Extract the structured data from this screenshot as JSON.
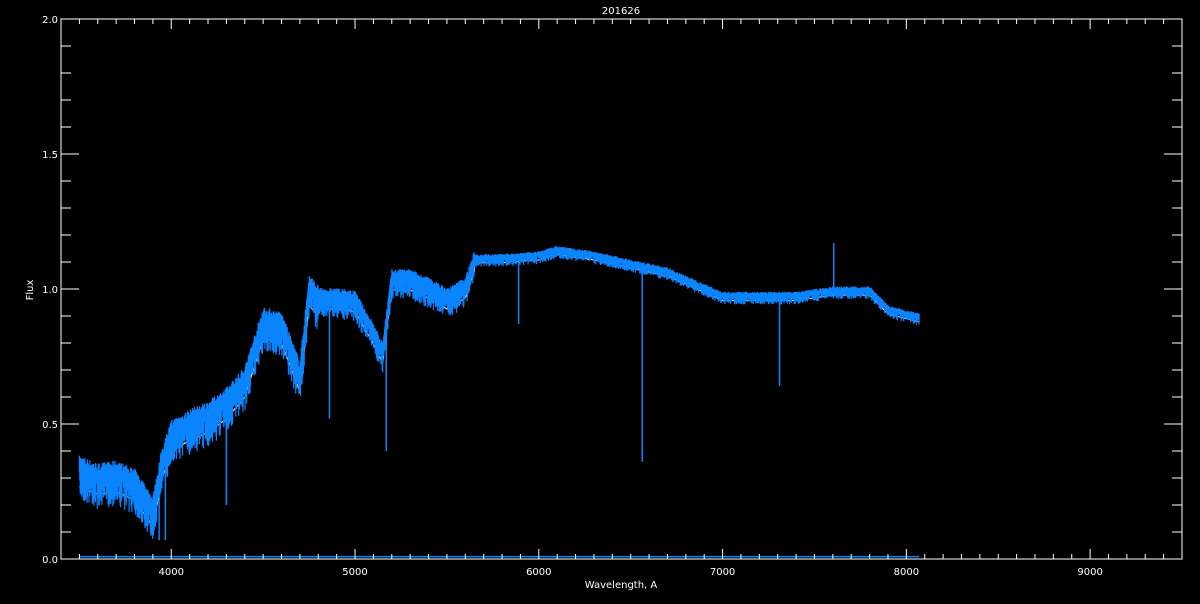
{
  "chart_data": {
    "type": "line",
    "title": "201626",
    "xlabel": "Wavelength, A",
    "ylabel": "Flux",
    "xlim": [
      3400,
      9500
    ],
    "ylim": [
      0.0,
      2.0
    ],
    "xticks": [
      4000,
      5000,
      6000,
      7000,
      8000,
      9000
    ],
    "xtick_labels": [
      "4000",
      "5000",
      "6000",
      "7000",
      "8000",
      "9000"
    ],
    "yticks": [
      0.0,
      0.5,
      1.0,
      1.5,
      2.0
    ],
    "ytick_labels": [
      "0.0",
      "0.5",
      "1.0",
      "1.5",
      "2.0"
    ],
    "grid": false,
    "background": "#000000",
    "colors": {
      "spectrum": "#0a84ff",
      "model": "#ffffff",
      "axes": "#ffffff"
    },
    "series": [
      {
        "role": "spectrum",
        "x": [
          3500,
          3600,
          3700,
          3800,
          3900,
          3950,
          4000,
          4100,
          4200,
          4300,
          4400,
          4500,
          4600,
          4700,
          4750,
          4800,
          4900,
          5000,
          5100,
          5150,
          5200,
          5300,
          5400,
          5500,
          5600,
          5650,
          5800,
          6000,
          6100,
          6300,
          6500,
          6700,
          6900,
          7000,
          7200,
          7400,
          7600,
          7800,
          7900,
          8070
        ],
        "y": [
          0.35,
          0.32,
          0.33,
          0.3,
          0.2,
          0.38,
          0.48,
          0.52,
          0.55,
          0.6,
          0.68,
          0.9,
          0.88,
          0.7,
          1.02,
          0.98,
          0.98,
          0.97,
          0.85,
          0.78,
          1.05,
          1.05,
          1.02,
          0.98,
          1.02,
          1.12,
          1.12,
          1.13,
          1.15,
          1.13,
          1.1,
          1.07,
          1.01,
          0.98,
          0.98,
          0.98,
          1.0,
          1.0,
          0.93,
          0.9
        ],
        "lines": [
          {
            "x": 3934,
            "y": 0.07
          },
          {
            "x": 3968,
            "y": 0.07
          },
          {
            "x": 4300,
            "y": 0.2
          },
          {
            "x": 4861,
            "y": 0.52
          },
          {
            "x": 5170,
            "y": 0.4
          },
          {
            "x": 5890,
            "y": 0.87
          },
          {
            "x": 6563,
            "y": 0.36
          },
          {
            "x": 7310,
            "y": 0.64
          },
          {
            "x": 7605,
            "y": 1.17
          }
        ]
      },
      {
        "role": "error",
        "x": [
          3500,
          8070
        ],
        "y": [
          0.005,
          0.005
        ]
      }
    ]
  }
}
